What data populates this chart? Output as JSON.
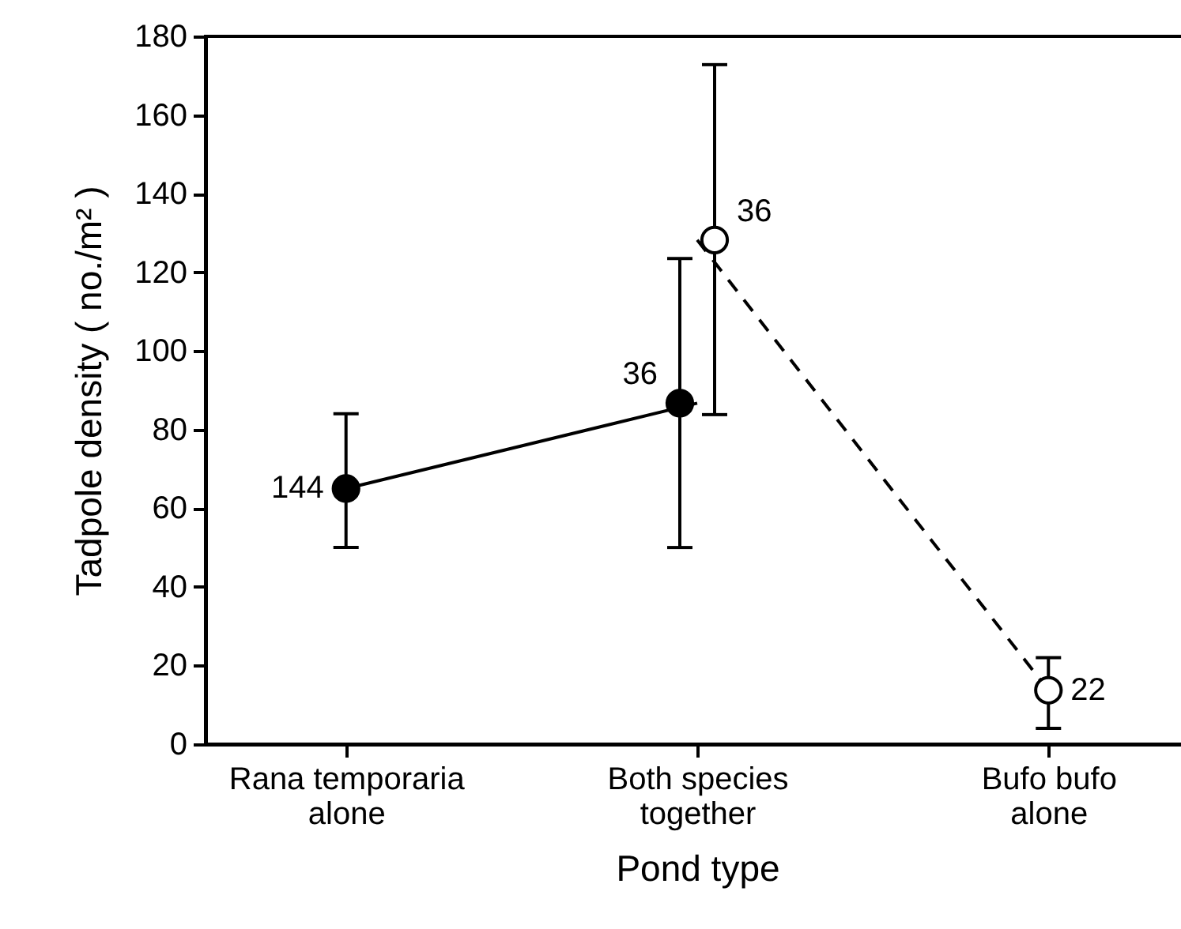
{
  "chart_data": {
    "type": "line",
    "xlabel": "Pond type",
    "ylabel": "Tadpole density ( no./m² )",
    "categories": [
      "Rana temporaria alone",
      "Both species together",
      "Bufo bufo alone"
    ],
    "series": [
      {
        "color": "#000000",
        "line_style": "solid",
        "values": [
          65,
          86.7,
          null
        ],
        "errors": [
          [
            50,
            84
          ],
          [
            50,
            123.5
          ],
          null
        ]
      },
      {
        "color": "#000000",
        "line_style": "dashed",
        "values": [
          null,
          128.2,
          13.7
        ],
        "errors": [
          null,
          [
            83.8,
            172.8
          ],
          [
            4,
            22
          ]
        ]
      }
    ],
    "ylim": [
      0,
      180
    ],
    "yticks": [
      0,
      20,
      40,
      60,
      80,
      100,
      120,
      140,
      160,
      180
    ],
    "marker": "circle",
    "grid": false,
    "legend": false,
    "annotations": [
      {
        "text": "144",
        "x": "Rana temporaria alone",
        "y": 65
      },
      {
        "text": "36",
        "x": "Both species together",
        "y": 86.7
      },
      {
        "text": "36",
        "x": "Both species together",
        "y": 128.2
      },
      {
        "text": "22",
        "x": "Bufo bufo alone",
        "y": 13.7
      }
    ]
  }
}
